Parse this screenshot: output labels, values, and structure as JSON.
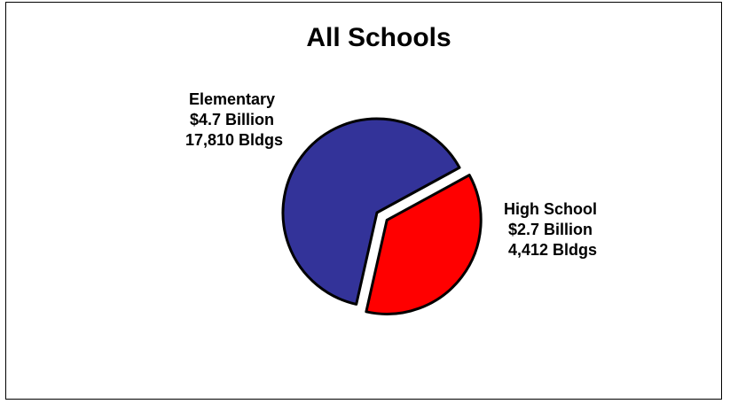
{
  "chart_data": {
    "type": "pie",
    "title": "All Schools",
    "slices": [
      {
        "category": "Elementary",
        "value": 4.7,
        "amount_label": "$4.7 Billion",
        "buildings": 17810,
        "buildings_label": "17,810 Bldgs",
        "color": "#333399",
        "exploded": false
      },
      {
        "category": "High School",
        "value": 2.7,
        "amount_label": "$2.7 Billion",
        "buildings": 4412,
        "buildings_label": "4,412 Bldgs",
        "color": "#ff0000",
        "exploded": true
      }
    ],
    "legend": "none",
    "outline_color": "#000000"
  }
}
